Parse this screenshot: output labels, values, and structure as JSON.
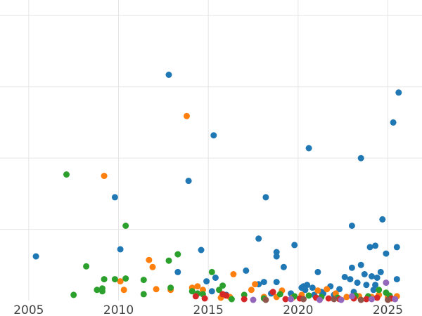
{
  "chart_data": {
    "type": "scatter",
    "title": "",
    "xlabel": "",
    "ylabel": "",
    "xlim": [
      2003.4,
      2026.9
    ],
    "ylim": [
      0,
      4.22
    ],
    "x_ticks": [
      2005,
      2010,
      2015,
      2020,
      2025
    ],
    "x_tick_labels": [
      "2005",
      "2010",
      "2015",
      "2020",
      "2025"
    ],
    "y_gridlines": [
      1,
      2,
      3,
      4
    ],
    "grid": true,
    "legend": "none",
    "series": [
      {
        "color": "#1f77b4",
        "points": [
          [
            2005.4,
            0.62
          ],
          [
            2009.8,
            1.45
          ],
          [
            2010.1,
            0.72
          ],
          [
            2012.8,
            3.17
          ],
          [
            2013.3,
            0.4
          ],
          [
            2013.9,
            1.68
          ],
          [
            2014.6,
            0.71
          ],
          [
            2014.9,
            0.27
          ],
          [
            2015.3,
            2.32
          ],
          [
            2015.4,
            0.32
          ],
          [
            2015.2,
            0.13
          ],
          [
            2016.0,
            0.08
          ],
          [
            2017.1,
            0.42
          ],
          [
            2017.8,
            0.87
          ],
          [
            2018.2,
            1.45
          ],
          [
            2017.8,
            0.23
          ],
          [
            2018.1,
            0.26
          ],
          [
            2018.8,
            0.62
          ],
          [
            2018.8,
            0.68
          ],
          [
            2018.8,
            0.26
          ],
          [
            2019.2,
            0.47
          ],
          [
            2019.8,
            0.78
          ],
          [
            2020.2,
            0.18
          ],
          [
            2020.3,
            0.2
          ],
          [
            2020.5,
            0.22
          ],
          [
            2020.4,
            0.15
          ],
          [
            2020.6,
            2.14
          ],
          [
            2020.8,
            0.18
          ],
          [
            2021.1,
            0.4
          ],
          [
            2021.4,
            0.1
          ],
          [
            2021.8,
            0.2
          ],
          [
            2022.3,
            0.16
          ],
          [
            2022.6,
            0.33
          ],
          [
            2022.9,
            0.3
          ],
          [
            2023.0,
            0.46
          ],
          [
            2023.0,
            1.05
          ],
          [
            2023.3,
            0.25
          ],
          [
            2023.5,
            2.0
          ],
          [
            2023.5,
            0.5
          ],
          [
            2023.7,
            0.37
          ],
          [
            2023.8,
            0.22
          ],
          [
            2024.0,
            0.75
          ],
          [
            2024.1,
            0.34
          ],
          [
            2024.3,
            0.77
          ],
          [
            2024.3,
            0.22
          ],
          [
            2024.4,
            0.32
          ],
          [
            2024.6,
            0.4
          ],
          [
            2024.7,
            1.14
          ],
          [
            2024.9,
            0.66
          ],
          [
            2025.3,
            2.5
          ],
          [
            2025.5,
            0.75
          ],
          [
            2025.5,
            0.3
          ],
          [
            2025.6,
            2.92
          ],
          [
            2024.2,
            0.15
          ],
          [
            2023.1,
            0.12
          ],
          [
            2022.0,
            0.08
          ],
          [
            2021.3,
            0.12
          ],
          [
            2020.9,
            0.08
          ],
          [
            2019.6,
            0.1
          ],
          [
            2018.5,
            0.1
          ]
        ]
      },
      {
        "color": "#ff7f0e",
        "points": [
          [
            2009.2,
            1.75
          ],
          [
            2010.1,
            0.27
          ],
          [
            2010.3,
            0.15
          ],
          [
            2011.7,
            0.57
          ],
          [
            2011.9,
            0.47
          ],
          [
            2012.1,
            0.16
          ],
          [
            2012.9,
            0.15
          ],
          [
            2013.8,
            2.59
          ],
          [
            2014.1,
            0.18
          ],
          [
            2014.4,
            0.2
          ],
          [
            2014.7,
            0.15
          ],
          [
            2015.7,
            0.04
          ],
          [
            2016.2,
            0.05
          ],
          [
            2016.4,
            0.37
          ],
          [
            2017.4,
            0.15
          ],
          [
            2017.6,
            0.23
          ],
          [
            2018.1,
            0.05
          ],
          [
            2018.8,
            0.05
          ],
          [
            2019.1,
            0.14
          ],
          [
            2019.7,
            0.04
          ],
          [
            2020.2,
            0.08
          ],
          [
            2021.1,
            0.14
          ],
          [
            2021.6,
            0.16
          ],
          [
            2022.1,
            0.1
          ],
          [
            2022.7,
            0.05
          ],
          [
            2023.4,
            0.06
          ],
          [
            2024.1,
            0.05
          ],
          [
            2024.5,
            0.08
          ],
          [
            2025.0,
            0.05
          ],
          [
            2025.5,
            0.06
          ]
        ]
      },
      {
        "color": "#2ca02c",
        "points": [
          [
            2007.1,
            1.77
          ],
          [
            2007.5,
            0.08
          ],
          [
            2008.2,
            0.48
          ],
          [
            2008.8,
            0.15
          ],
          [
            2009.2,
            0.3
          ],
          [
            2009.1,
            0.17
          ],
          [
            2009.1,
            0.13
          ],
          [
            2009.8,
            0.3
          ],
          [
            2010.4,
            1.05
          ],
          [
            2010.4,
            0.31
          ],
          [
            2011.4,
            0.29
          ],
          [
            2011.4,
            0.09
          ],
          [
            2012.8,
            0.56
          ],
          [
            2012.9,
            0.18
          ],
          [
            2013.3,
            0.65
          ],
          [
            2014.1,
            0.13
          ],
          [
            2014.4,
            0.1
          ],
          [
            2014.7,
            0.09
          ],
          [
            2015.2,
            0.4
          ],
          [
            2015.6,
            0.15
          ],
          [
            2015.8,
            0.21
          ],
          [
            2016.3,
            0.02
          ],
          [
            2017.0,
            0.08
          ],
          [
            2018.1,
            0.03
          ],
          [
            2019.0,
            0.09
          ],
          [
            2019.8,
            0.06
          ],
          [
            2020.6,
            0.07
          ],
          [
            2021.3,
            0.05
          ],
          [
            2022.2,
            0.04
          ],
          [
            2023.2,
            0.07
          ],
          [
            2023.9,
            0.06
          ],
          [
            2024.5,
            0.15
          ],
          [
            2024.9,
            0.11
          ],
          [
            2025.1,
            0.07
          ]
        ]
      },
      {
        "color": "#d62728",
        "points": [
          [
            2014.3,
            0.06
          ],
          [
            2014.8,
            0.03
          ],
          [
            2015.8,
            0.09
          ],
          [
            2016.0,
            0.07
          ],
          [
            2017.0,
            0.02
          ],
          [
            2018.6,
            0.12
          ],
          [
            2019.3,
            0.02
          ],
          [
            2020.1,
            0.03
          ],
          [
            2021.0,
            0.04
          ],
          [
            2021.7,
            0.03
          ],
          [
            2022.3,
            0.02
          ],
          [
            2023.1,
            0.03
          ],
          [
            2023.8,
            0.02
          ],
          [
            2024.4,
            0.04
          ],
          [
            2025.2,
            0.03
          ]
        ]
      },
      {
        "color": "#9467bd",
        "points": [
          [
            2017.5,
            0.01
          ],
          [
            2019.6,
            0.02
          ],
          [
            2021.2,
            0.01
          ],
          [
            2022.4,
            0.01
          ],
          [
            2023.0,
            0.06
          ],
          [
            2024.1,
            0.02
          ],
          [
            2024.9,
            0.25
          ],
          [
            2025.4,
            0.02
          ]
        ]
      },
      {
        "color": "#8c564b",
        "points": [
          [
            2018.2,
            0.01
          ],
          [
            2020.3,
            0.02
          ],
          [
            2022.0,
            0.02
          ],
          [
            2023.5,
            0.01
          ],
          [
            2025.0,
            0.01
          ]
        ]
      }
    ]
  }
}
